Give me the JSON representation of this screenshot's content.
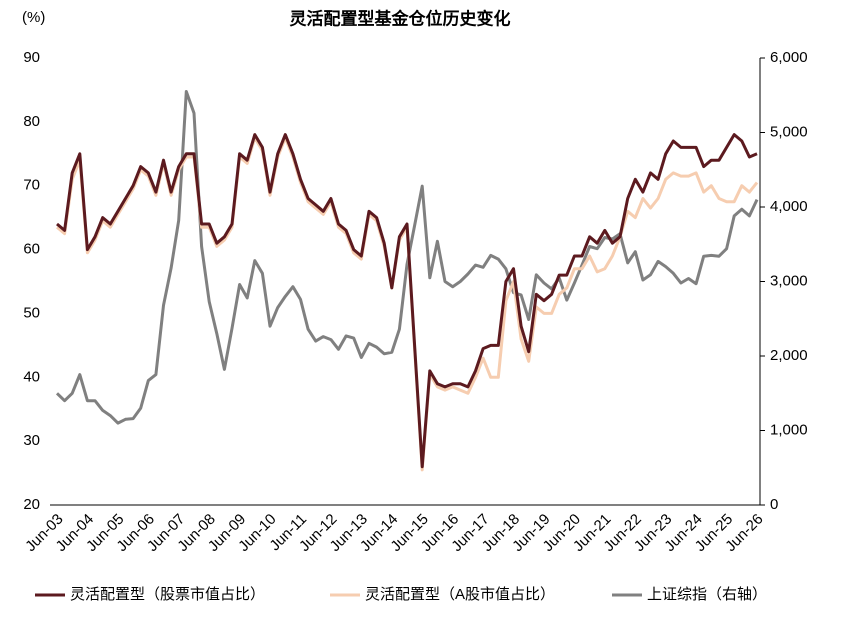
{
  "chart_data": {
    "type": "line",
    "title": "灵活配置型基金仓位历史变化",
    "y_label": "(%)",
    "categories": [
      "Jun-03",
      null,
      null,
      null,
      "Jun-04",
      null,
      null,
      null,
      "Jun-05",
      null,
      null,
      null,
      "Jun-06",
      null,
      null,
      null,
      "Jun-07",
      null,
      null,
      null,
      "Jun-08",
      null,
      null,
      null,
      "Jun-09",
      null,
      null,
      null,
      "Jun-10",
      null,
      null,
      null,
      "Jun-11",
      null,
      null,
      null,
      "Jun-12",
      null,
      null,
      null,
      "Jun-13",
      null,
      null,
      null,
      "Jun-14",
      null,
      null,
      null,
      "Jun-15",
      null,
      null,
      null,
      "Jun-16",
      null,
      null,
      null,
      "Jun-17",
      null,
      null,
      null,
      "Jun-18",
      null,
      null,
      null,
      "Jun-19",
      null,
      null,
      null,
      "Jun-20",
      null,
      null,
      null,
      "Jun-21",
      null,
      null,
      null,
      "Jun-22",
      null,
      null,
      null,
      "Jun-23",
      null,
      null,
      null,
      "Jun-24",
      null,
      null,
      null,
      "Jun-25",
      null,
      null,
      null,
      "Jun-26"
    ],
    "ylim": [
      20,
      90
    ],
    "yticks": [
      20,
      30,
      40,
      50,
      60,
      70,
      80,
      90
    ],
    "y2lim": [
      0,
      6000
    ],
    "y2ticks": [
      0,
      {
        "value": 1000,
        "label": "1,000"
      },
      {
        "value": 2000,
        "label": "2,000"
      },
      {
        "value": 3000,
        "label": "3,000"
      },
      {
        "value": 4000,
        "label": "4,000"
      },
      {
        "value": 5000,
        "label": "5,000"
      },
      {
        "value": 6000,
        "label": "6,000"
      }
    ],
    "series": [
      {
        "name": "灵活配置型（股票市值占比）",
        "color": "#5c1a1f",
        "values": [
          64,
          63,
          72,
          75,
          60,
          62,
          65,
          64,
          66,
          68,
          70,
          73,
          72,
          69,
          74,
          69,
          73,
          75,
          75,
          64,
          64,
          61,
          62,
          64,
          75,
          74,
          78,
          76,
          69,
          75,
          78,
          75,
          71,
          68,
          67,
          66,
          68,
          64,
          63,
          60,
          59,
          66,
          65,
          61,
          54,
          62,
          64,
          45,
          26,
          41,
          39,
          38.5,
          39,
          39,
          38.5,
          41,
          44.5,
          45,
          45,
          55,
          57,
          48,
          44,
          53,
          52,
          53,
          56,
          56,
          59,
          59,
          62,
          61,
          63,
          61,
          62,
          68,
          71,
          69,
          72,
          71,
          75,
          77,
          76,
          76,
          76,
          73,
          74,
          74,
          76,
          78,
          77,
          74.5,
          75
        ]
      },
      {
        "name": "灵活配置型（A股市值占比）",
        "color": "#f6cdb0",
        "values": [
          63.5,
          62.5,
          71,
          74,
          59.5,
          61.5,
          64.5,
          63.5,
          65.5,
          67.5,
          69.5,
          72.5,
          71.5,
          68.5,
          73.5,
          68.5,
          72.5,
          74.5,
          74.5,
          63.5,
          63.5,
          60.5,
          61.5,
          63.5,
          74.5,
          73.5,
          77.5,
          75.5,
          68.5,
          74.5,
          77.5,
          74.5,
          70.5,
          67.5,
          66.5,
          65.5,
          67.5,
          63.5,
          62.5,
          59.5,
          58.5,
          65.5,
          64.5,
          60.5,
          54,
          61.5,
          63.5,
          44.5,
          25.5,
          40.5,
          38.5,
          38,
          38.5,
          38,
          37.5,
          40,
          43,
          40,
          40,
          52,
          55,
          46,
          42.5,
          51,
          50,
          50,
          53,
          54,
          57,
          57,
          59,
          56.5,
          57,
          59,
          62,
          66,
          65,
          68,
          66.5,
          68,
          71,
          72,
          71.5,
          71.5,
          72,
          69,
          70,
          68,
          67.5,
          67.5,
          70,
          69,
          70.5
        ]
      },
      {
        "name": "上证综指（右轴）",
        "color": "#808080",
        "axis": "y2",
        "values": [
          1500,
          1400,
          1500,
          1750,
          1400,
          1400,
          1270,
          1200,
          1100,
          1150,
          1160,
          1300,
          1670,
          1750,
          2680,
          3180,
          3820,
          5550,
          5260,
          3470,
          2730,
          2300,
          1820,
          2370,
          2960,
          2780,
          3280,
          3110,
          2400,
          2650,
          2800,
          2930,
          2760,
          2360,
          2200,
          2260,
          2220,
          2090,
          2270,
          2240,
          1980,
          2170,
          2120,
          2030,
          2050,
          2360,
          3230,
          3750,
          4280,
          3050,
          3540,
          3000,
          2930,
          3000,
          3100,
          3220,
          3190,
          3350,
          3300,
          3170,
          2850,
          2820,
          2490,
          3090,
          2980,
          2900,
          3050,
          2750,
          2980,
          3220,
          3470,
          3440,
          3590,
          3570,
          3640,
          3250,
          3400,
          3020,
          3090,
          3270,
          3200,
          3110,
          2980,
          3040,
          2970,
          3340,
          3350,
          3340,
          3440,
          3880,
          3970,
          3880,
          4100
        ]
      }
    ]
  }
}
